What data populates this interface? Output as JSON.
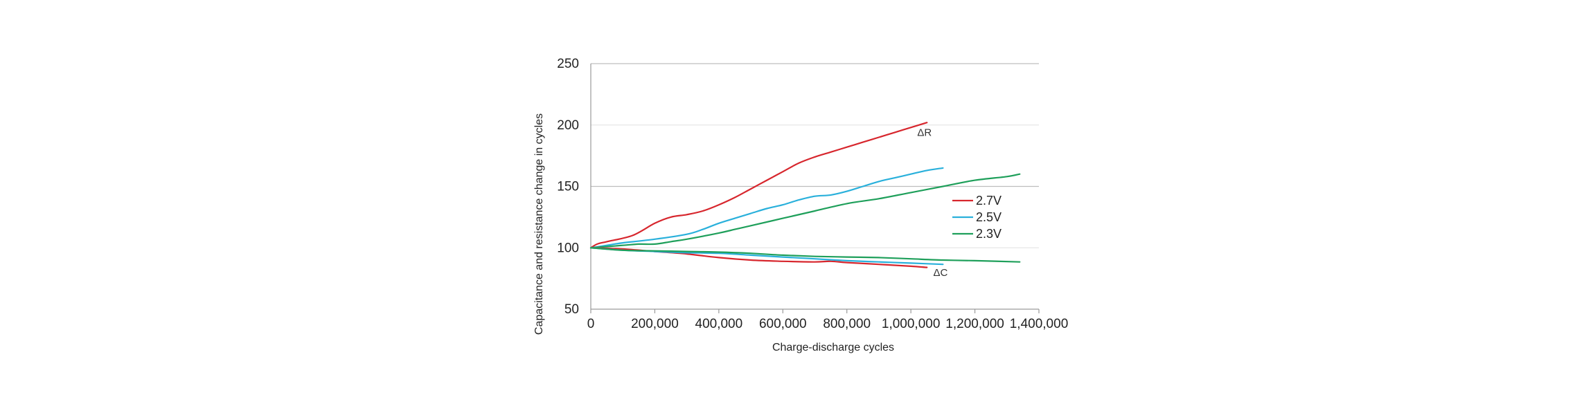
{
  "chart_data": {
    "type": "line",
    "title": "",
    "xlabel": "Charge-discharge cycles",
    "ylabel": "Capacitance and resistance change in cycles",
    "xlim": [
      0,
      1400000
    ],
    "ylim": [
      50,
      250
    ],
    "x_ticks": [
      0,
      200000,
      400000,
      600000,
      800000,
      1000000,
      1200000,
      1400000
    ],
    "x_tick_labels": [
      "0",
      "200,000",
      "400,000",
      "600,000",
      "800,000",
      "1,000,000",
      "1,200,000",
      "1,400,000"
    ],
    "y_ticks": [
      50,
      100,
      150,
      200,
      250
    ],
    "y_tick_labels": [
      "50",
      "100",
      "150",
      "200",
      "250"
    ],
    "grid": "horizontal",
    "legend_position": "right",
    "legend": [
      {
        "label": "2.7V",
        "color": "#d7262d"
      },
      {
        "label": "2.5V",
        "color": "#29b0db"
      },
      {
        "label": "2.3V",
        "color": "#1e9f5a"
      }
    ],
    "annotations": [
      {
        "text": "ΔR",
        "x": 1020000,
        "y": 191
      },
      {
        "text": "ΔC",
        "x": 1070000,
        "y": 77
      }
    ],
    "series": [
      {
        "name": "2.7V",
        "metric": "ΔR",
        "color": "#d7262d",
        "x": [
          0,
          20000,
          50000,
          130000,
          200000,
          250000,
          300000,
          350000,
          400000,
          450000,
          500000,
          550000,
          600000,
          650000,
          700000,
          750000,
          800000,
          850000,
          900000,
          950000,
          1000000,
          1050000
        ],
        "y": [
          100,
          103,
          105,
          110,
          120,
          125,
          127,
          130,
          135,
          141,
          148,
          155,
          162,
          169,
          174,
          178,
          182,
          186,
          190,
          194,
          198,
          202
        ]
      },
      {
        "name": "2.5V",
        "metric": "ΔR",
        "color": "#29b0db",
        "x": [
          0,
          50000,
          100000,
          200000,
          300000,
          350000,
          400000,
          450000,
          500000,
          550000,
          600000,
          650000,
          700000,
          750000,
          800000,
          850000,
          900000,
          950000,
          1000000,
          1050000,
          1100000
        ],
        "y": [
          100,
          102,
          104,
          107,
          111,
          115,
          120,
          124,
          128,
          132,
          135,
          139,
          142,
          143,
          146,
          150,
          154,
          157,
          160,
          163,
          165
        ]
      },
      {
        "name": "2.3V",
        "metric": "ΔR",
        "color": "#1e9f5a",
        "x": [
          0,
          100000,
          150000,
          200000,
          250000,
          300000,
          400000,
          450000,
          500000,
          600000,
          700000,
          800000,
          900000,
          1000000,
          1100000,
          1200000,
          1300000,
          1340000
        ],
        "y": [
          100,
          102,
          103,
          103,
          105,
          107,
          112,
          115,
          118,
          124,
          130,
          136,
          140,
          145,
          150,
          155,
          158,
          160
        ]
      },
      {
        "name": "2.7V",
        "metric": "ΔC",
        "color": "#d7262d",
        "x": [
          0,
          100000,
          200000,
          300000,
          400000,
          500000,
          600000,
          700000,
          750000,
          800000,
          900000,
          1000000,
          1050000
        ],
        "y": [
          100,
          99,
          97,
          95,
          92,
          90,
          89,
          88.5,
          89,
          88,
          86.5,
          85,
          84
        ]
      },
      {
        "name": "2.5V",
        "metric": "ΔC",
        "color": "#29b0db",
        "x": [
          0,
          100000,
          200000,
          300000,
          400000,
          500000,
          600000,
          700000,
          800000,
          900000,
          1000000,
          1100000
        ],
        "y": [
          100,
          98,
          97,
          96,
          95.5,
          94,
          92.5,
          91,
          89.5,
          88.5,
          87.5,
          86.5
        ]
      },
      {
        "name": "2.3V",
        "metric": "ΔC",
        "color": "#1e9f5a",
        "x": [
          0,
          100000,
          200000,
          300000,
          400000,
          500000,
          600000,
          700000,
          800000,
          900000,
          1000000,
          1100000,
          1200000,
          1340000
        ],
        "y": [
          100,
          98,
          97.5,
          97,
          96.5,
          95.5,
          94,
          93,
          92.5,
          92,
          91,
          90,
          89.5,
          88.5
        ]
      }
    ]
  }
}
